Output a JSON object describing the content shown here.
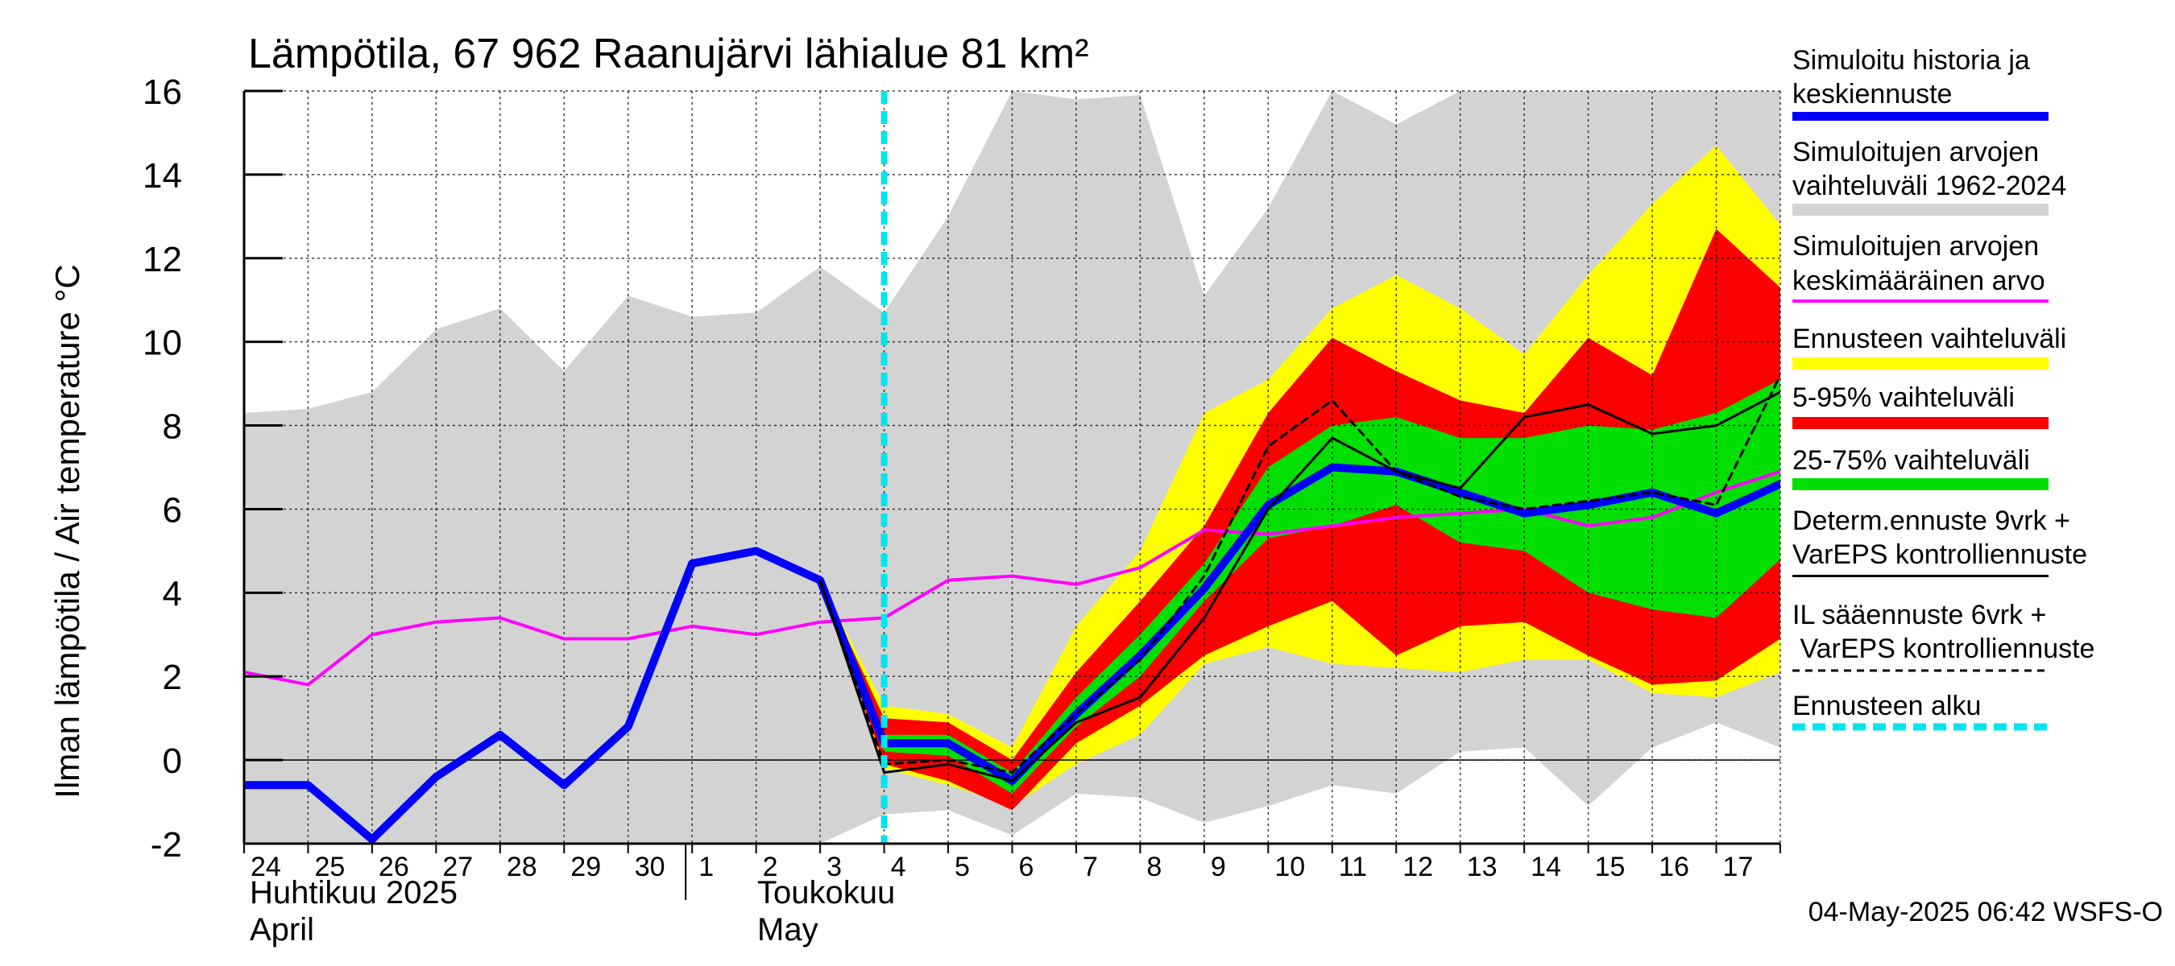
{
  "title": "Lämpötila, 67 962 Raanujärvi lähialue 81 km²",
  "y_axis_label": "Ilman lämpötila / Air temperature   °C",
  "timestamp": "04-May-2025 06:42 WSFS-O",
  "month_labels": {
    "april_fi": "Huhtikuu  2025",
    "april_en": "April",
    "may_fi": "Toukokuu",
    "may_en": "May"
  },
  "legend": {
    "historia_line1": "Simuloitu historia ja",
    "historia_line2": "keskiennuste",
    "vaihteluvali_line1": "Simuloitujen arvojen",
    "vaihteluvali_line2": "vaihteluväli 1962-2024",
    "keskiarvo_line1": "Simuloitujen arvojen",
    "keskiarvo_line2": "keskimääräinen arvo",
    "ennuste_range": "Ennusteen vaihteluväli",
    "p5_95": "5-95% vaihteluväli",
    "p25_75": "25-75% vaihteluväli",
    "determ_line1": "Determ.ennuste 9vrk +",
    "determ_line2": "VarEPS kontrolliennuste",
    "il_line1": "IL sääennuste 6vrk  +",
    "il_line2": " VarEPS kontrolliennuste",
    "alku": "Ennusteen alku"
  },
  "chart_data": {
    "type": "area",
    "title": "Lämpötila, 67 962 Raanujärvi lähialue 81 km²",
    "ylabel": "Ilman lämpötila / Air temperature   °C",
    "ylim": [
      -2,
      16
    ],
    "y_ticks": [
      -2,
      0,
      2,
      4,
      6,
      8,
      10,
      12,
      14,
      16
    ],
    "x_start": "2025-04-24",
    "x_end": "2025-05-18",
    "x_tick_labels": [
      "24",
      "25",
      "26",
      "27",
      "28",
      "29",
      "30",
      "1",
      "2",
      "3",
      "4",
      "5",
      "6",
      "7",
      "8",
      "9",
      "10",
      "11",
      "12",
      "13",
      "14",
      "15",
      "16",
      "17"
    ],
    "forecast_start": "2025-05-04",
    "grid": true,
    "colors": {
      "history": "#0000ff",
      "hist_range": "#d3d3d3",
      "mean": "#ff00ff",
      "ens_range": "#ffff00",
      "p5_95": "#ff0000",
      "p25_75": "#00e000",
      "determ": "#000000",
      "forecast_start": "#00e5ee"
    },
    "series": [
      {
        "name": "Simuloitujen arvojen vaihteluväli 1962-2024",
        "kind": "band",
        "x": [
          "2025-04-24",
          "2025-04-25",
          "2025-04-26",
          "2025-04-27",
          "2025-04-28",
          "2025-04-29",
          "2025-04-30",
          "2025-05-01",
          "2025-05-02",
          "2025-05-03",
          "2025-05-04",
          "2025-05-05",
          "2025-05-06",
          "2025-05-07",
          "2025-05-08",
          "2025-05-09",
          "2025-05-10",
          "2025-05-11",
          "2025-05-12",
          "2025-05-13",
          "2025-05-14",
          "2025-05-15",
          "2025-05-16",
          "2025-05-17",
          "2025-05-18"
        ],
        "lower": [
          -2.0,
          -2.0,
          -2.0,
          -2.0,
          -2.0,
          -2.0,
          -2.0,
          -2.0,
          -2.0,
          -2.0,
          -1.3,
          -1.2,
          -1.8,
          -0.8,
          -0.9,
          -1.5,
          -1.1,
          -0.6,
          -0.8,
          0.2,
          0.3,
          -1.1,
          0.3,
          0.9,
          0.3
        ],
        "upper": [
          8.3,
          8.4,
          8.8,
          10.3,
          10.8,
          9.3,
          11.1,
          10.6,
          10.7,
          11.8,
          10.7,
          13.0,
          16.0,
          15.8,
          15.9,
          11.1,
          13.2,
          16.0,
          15.2,
          16.0,
          16.0,
          16.0,
          16.0,
          16.0,
          16.0
        ]
      },
      {
        "name": "Ennusteen vaihteluväli",
        "kind": "band",
        "x": [
          "2025-05-03",
          "2025-05-04",
          "2025-05-05",
          "2025-05-06",
          "2025-05-07",
          "2025-05-08",
          "2025-05-09",
          "2025-05-10",
          "2025-05-11",
          "2025-05-12",
          "2025-05-13",
          "2025-05-14",
          "2025-05-15",
          "2025-05-16",
          "2025-05-17",
          "2025-05-18"
        ],
        "lower": [
          4.3,
          -0.2,
          -0.6,
          -1.1,
          -0.1,
          0.6,
          2.3,
          2.7,
          2.3,
          2.2,
          2.1,
          2.4,
          2.4,
          1.6,
          1.5,
          2.1
        ],
        "upper": [
          4.3,
          1.3,
          1.1,
          0.3,
          3.2,
          5.0,
          8.3,
          9.1,
          10.8,
          11.6,
          10.8,
          9.7,
          11.6,
          13.3,
          14.7,
          12.8
        ]
      },
      {
        "name": "5-95% vaihteluväli",
        "kind": "band",
        "x": [
          "2025-05-03",
          "2025-05-04",
          "2025-05-05",
          "2025-05-06",
          "2025-05-07",
          "2025-05-08",
          "2025-05-09",
          "2025-05-10",
          "2025-05-11",
          "2025-05-12",
          "2025-05-13",
          "2025-05-14",
          "2025-05-15",
          "2025-05-16",
          "2025-05-17",
          "2025-05-18"
        ],
        "lower": [
          4.3,
          -0.1,
          -0.5,
          -1.2,
          0.4,
          1.3,
          2.5,
          3.2,
          3.8,
          2.5,
          3.2,
          3.3,
          2.5,
          1.8,
          1.9,
          2.9
        ],
        "upper": [
          4.3,
          1.0,
          0.9,
          0.0,
          2.1,
          3.8,
          5.6,
          8.3,
          10.1,
          9.3,
          8.6,
          8.3,
          10.1,
          9.2,
          12.7,
          11.3
        ]
      },
      {
        "name": "25-75% vaihteluväli",
        "kind": "band",
        "x": [
          "2025-05-03",
          "2025-05-04",
          "2025-05-05",
          "2025-05-06",
          "2025-05-07",
          "2025-05-08",
          "2025-05-09",
          "2025-05-10",
          "2025-05-11",
          "2025-05-12",
          "2025-05-13",
          "2025-05-14",
          "2025-05-15",
          "2025-05-16",
          "2025-05-17",
          "2025-05-18"
        ],
        "lower": [
          4.3,
          0.2,
          0.1,
          -0.8,
          0.8,
          2.0,
          3.8,
          5.3,
          5.6,
          6.1,
          5.2,
          5.0,
          4.0,
          3.6,
          3.4,
          4.8
        ],
        "upper": [
          4.3,
          0.6,
          0.6,
          -0.3,
          1.5,
          3.0,
          4.7,
          7.0,
          8.0,
          8.2,
          7.7,
          7.7,
          8.0,
          7.9,
          8.3,
          9.1
        ]
      },
      {
        "name": "Simuloitujen arvojen keskimääräinen arvo",
        "kind": "line",
        "x": [
          "2025-04-24",
          "2025-04-25",
          "2025-04-26",
          "2025-04-27",
          "2025-04-28",
          "2025-04-29",
          "2025-04-30",
          "2025-05-01",
          "2025-05-02",
          "2025-05-03",
          "2025-05-04",
          "2025-05-05",
          "2025-05-06",
          "2025-05-07",
          "2025-05-08",
          "2025-05-09",
          "2025-05-10",
          "2025-05-11",
          "2025-05-12",
          "2025-05-13",
          "2025-05-14",
          "2025-05-15",
          "2025-05-16",
          "2025-05-17",
          "2025-05-18"
        ],
        "y": [
          2.1,
          1.8,
          3.0,
          3.3,
          3.4,
          2.9,
          2.9,
          3.2,
          3.0,
          3.3,
          3.4,
          4.3,
          4.4,
          4.2,
          4.6,
          5.5,
          5.4,
          5.6,
          5.8,
          5.9,
          6.0,
          5.6,
          5.8,
          6.4,
          6.9
        ]
      },
      {
        "name": "Simuloitu historia ja keskiennuste",
        "kind": "line",
        "x": [
          "2025-04-24",
          "2025-04-25",
          "2025-04-26",
          "2025-04-27",
          "2025-04-28",
          "2025-04-29",
          "2025-04-30",
          "2025-05-01",
          "2025-05-02",
          "2025-05-03",
          "2025-05-04",
          "2025-05-05",
          "2025-05-06",
          "2025-05-07",
          "2025-05-08",
          "2025-05-09",
          "2025-05-10",
          "2025-05-11",
          "2025-05-12",
          "2025-05-13",
          "2025-05-14",
          "2025-05-15",
          "2025-05-16",
          "2025-05-17",
          "2025-05-18"
        ],
        "y": [
          -0.6,
          -0.6,
          -1.9,
          -0.4,
          0.6,
          -0.6,
          0.8,
          4.7,
          5.0,
          4.3,
          0.4,
          0.4,
          -0.5,
          1.1,
          2.5,
          4.1,
          6.1,
          7.0,
          6.9,
          6.4,
          5.9,
          6.1,
          6.4,
          5.9,
          6.6
        ]
      },
      {
        "name": "Determ.ennuste 9vrk + VarEPS kontrolliennuste",
        "kind": "line",
        "x": [
          "2025-05-03",
          "2025-05-04",
          "2025-05-05",
          "2025-05-06",
          "2025-05-07",
          "2025-05-08",
          "2025-05-09",
          "2025-05-10",
          "2025-05-11",
          "2025-05-12",
          "2025-05-13",
          "2025-05-14",
          "2025-05-15",
          "2025-05-16",
          "2025-05-17",
          "2025-05-18"
        ],
        "y": [
          4.3,
          -0.3,
          -0.1,
          -0.5,
          0.9,
          1.5,
          3.4,
          6.0,
          7.7,
          6.9,
          6.5,
          8.2,
          8.5,
          7.8,
          8.0,
          8.8
        ]
      },
      {
        "name": "IL sääennuste 6vrk + VarEPS kontrolliennuste",
        "kind": "line",
        "x": [
          "2025-05-03",
          "2025-05-04",
          "2025-05-05",
          "2025-05-06",
          "2025-05-07",
          "2025-05-08",
          "2025-05-09",
          "2025-05-10",
          "2025-05-11",
          "2025-05-12",
          "2025-05-13",
          "2025-05-14",
          "2025-05-15",
          "2025-05-16",
          "2025-05-17",
          "2025-05-18"
        ],
        "y": [
          4.3,
          -0.1,
          0.0,
          -0.3,
          1.1,
          2.4,
          4.4,
          7.5,
          8.6,
          6.9,
          6.3,
          6.0,
          6.2,
          6.4,
          6.1,
          9.2
        ]
      }
    ]
  }
}
